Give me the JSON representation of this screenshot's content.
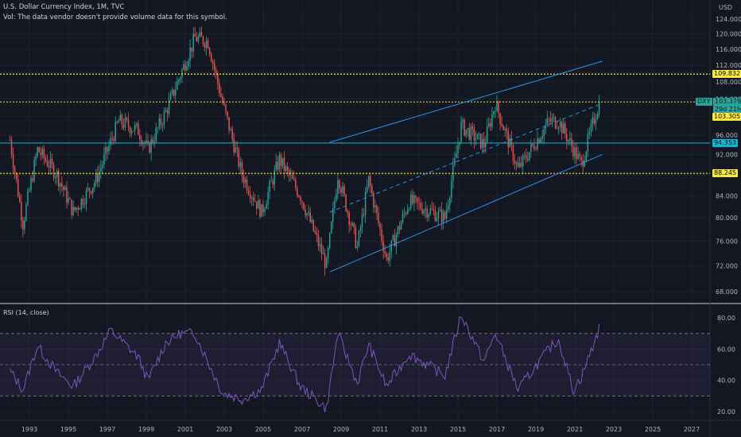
{
  "header": {
    "title": "U.S. Dollar Currency Index, 1M, TVC",
    "volume_note": "Vol: The data vendor doesn't provide volume data for this symbol.",
    "currency": "USD"
  },
  "rsi": {
    "label": "RSI (14, close)"
  },
  "badges": {
    "ticker": "DXY",
    "last_price": "103.379",
    "countdown": "29d 21h",
    "levels": [
      "109.832",
      "103.305",
      "94.353",
      "88.245"
    ]
  },
  "colors": {
    "background": "#131722",
    "up": "#26a69a",
    "down": "#ef5350",
    "channel": "#2196f3",
    "level_dotted": "#ffeb3b",
    "level_solid": "#00bcd4",
    "rsi_line": "#7e57c2",
    "rsi_band": "#7e57c2"
  },
  "chart_data": [
    {
      "type": "candlestick",
      "title": "U.S. Dollar Currency Index, 1M, TVC",
      "x_ticks": [
        "1993",
        "1995",
        "1997",
        "1999",
        "2001",
        "2003",
        "2005",
        "2007",
        "2009",
        "2011",
        "2013",
        "2015",
        "2017",
        "2019",
        "2021",
        "2023",
        "2025",
        "2027"
      ],
      "y_ticks": [
        68,
        72,
        76,
        80,
        84,
        88,
        92,
        96,
        100,
        104,
        108,
        112,
        116,
        120,
        124
      ],
      "ylim": [
        66,
        125
      ],
      "y_scale": "log",
      "series_close_keypoints": [
        {
          "date": "1992-01",
          "value": 95
        },
        {
          "date": "1992-09",
          "value": 79
        },
        {
          "date": "1993-06",
          "value": 93
        },
        {
          "date": "1994-06",
          "value": 88
        },
        {
          "date": "1995-04",
          "value": 81
        },
        {
          "date": "1996-06",
          "value": 87
        },
        {
          "date": "1997-08",
          "value": 99
        },
        {
          "date": "1998-08",
          "value": 97
        },
        {
          "date": "1999-02",
          "value": 93
        },
        {
          "date": "2000-01",
          "value": 101
        },
        {
          "date": "2001-07",
          "value": 119
        },
        {
          "date": "2002-03",
          "value": 118
        },
        {
          "date": "2002-12",
          "value": 103
        },
        {
          "date": "2003-12",
          "value": 88
        },
        {
          "date": "2004-12",
          "value": 81
        },
        {
          "date": "2005-11",
          "value": 91
        },
        {
          "date": "2006-12",
          "value": 84
        },
        {
          "date": "2008-04",
          "value": 72
        },
        {
          "date": "2008-11",
          "value": 88
        },
        {
          "date": "2009-11",
          "value": 75
        },
        {
          "date": "2010-06",
          "value": 87
        },
        {
          "date": "2011-05",
          "value": 73
        },
        {
          "date": "2012-07",
          "value": 83
        },
        {
          "date": "2014-05",
          "value": 80
        },
        {
          "date": "2015-03",
          "value": 98
        },
        {
          "date": "2016-05",
          "value": 94
        },
        {
          "date": "2016-12",
          "value": 103
        },
        {
          "date": "2018-02",
          "value": 89
        },
        {
          "date": "2019-09",
          "value": 99
        },
        {
          "date": "2020-03",
          "value": 99
        },
        {
          "date": "2021-05",
          "value": 90
        },
        {
          "date": "2022-04",
          "value": 103.379
        }
      ],
      "horizontal_levels": [
        109.832,
        103.305,
        94.353,
        88.245
      ],
      "last_price": 103.379,
      "channel": {
        "upper": [
          {
            "date": "2008-06",
            "value": 94.5
          },
          {
            "date": "2022-06",
            "value": 113
          }
        ],
        "mid": [
          {
            "date": "2008-06",
            "value": 81
          },
          {
            "date": "2022-06",
            "value": 103
          }
        ],
        "lower": [
          {
            "date": "2008-06",
            "value": 71
          },
          {
            "date": "2022-06",
            "value": 92
          }
        ]
      }
    },
    {
      "type": "line",
      "title": "RSI (14, close)",
      "y_ticks": [
        20,
        40,
        60,
        80
      ],
      "ylim": [
        14,
        88
      ],
      "bands": [
        70,
        50,
        30
      ],
      "series_keypoints": [
        {
          "date": "1992-01",
          "value": 46
        },
        {
          "date": "1992-09",
          "value": 34
        },
        {
          "date": "1993-06",
          "value": 62
        },
        {
          "date": "1994-06",
          "value": 45
        },
        {
          "date": "1995-04",
          "value": 36
        },
        {
          "date": "1996-06",
          "value": 56
        },
        {
          "date": "1997-03",
          "value": 72
        },
        {
          "date": "1998-08",
          "value": 55
        },
        {
          "date": "1999-02",
          "value": 40
        },
        {
          "date": "2000-01",
          "value": 64
        },
        {
          "date": "2000-10",
          "value": 70
        },
        {
          "date": "2001-07",
          "value": 70
        },
        {
          "date": "2002-06",
          "value": 45
        },
        {
          "date": "2002-12",
          "value": 32
        },
        {
          "date": "2003-12",
          "value": 28
        },
        {
          "date": "2004-12",
          "value": 34
        },
        {
          "date": "2005-11",
          "value": 64
        },
        {
          "date": "2006-12",
          "value": 36
        },
        {
          "date": "2008-04",
          "value": 22
        },
        {
          "date": "2008-11",
          "value": 70
        },
        {
          "date": "2009-11",
          "value": 38
        },
        {
          "date": "2010-06",
          "value": 63
        },
        {
          "date": "2011-05",
          "value": 36
        },
        {
          "date": "2012-07",
          "value": 57
        },
        {
          "date": "2014-05",
          "value": 43
        },
        {
          "date": "2015-03",
          "value": 82
        },
        {
          "date": "2016-05",
          "value": 52
        },
        {
          "date": "2016-12",
          "value": 70
        },
        {
          "date": "2018-02",
          "value": 34
        },
        {
          "date": "2019-09",
          "value": 60
        },
        {
          "date": "2020-03",
          "value": 66
        },
        {
          "date": "2020-12",
          "value": 34
        },
        {
          "date": "2021-05",
          "value": 42
        },
        {
          "date": "2022-04",
          "value": 73
        }
      ]
    }
  ]
}
